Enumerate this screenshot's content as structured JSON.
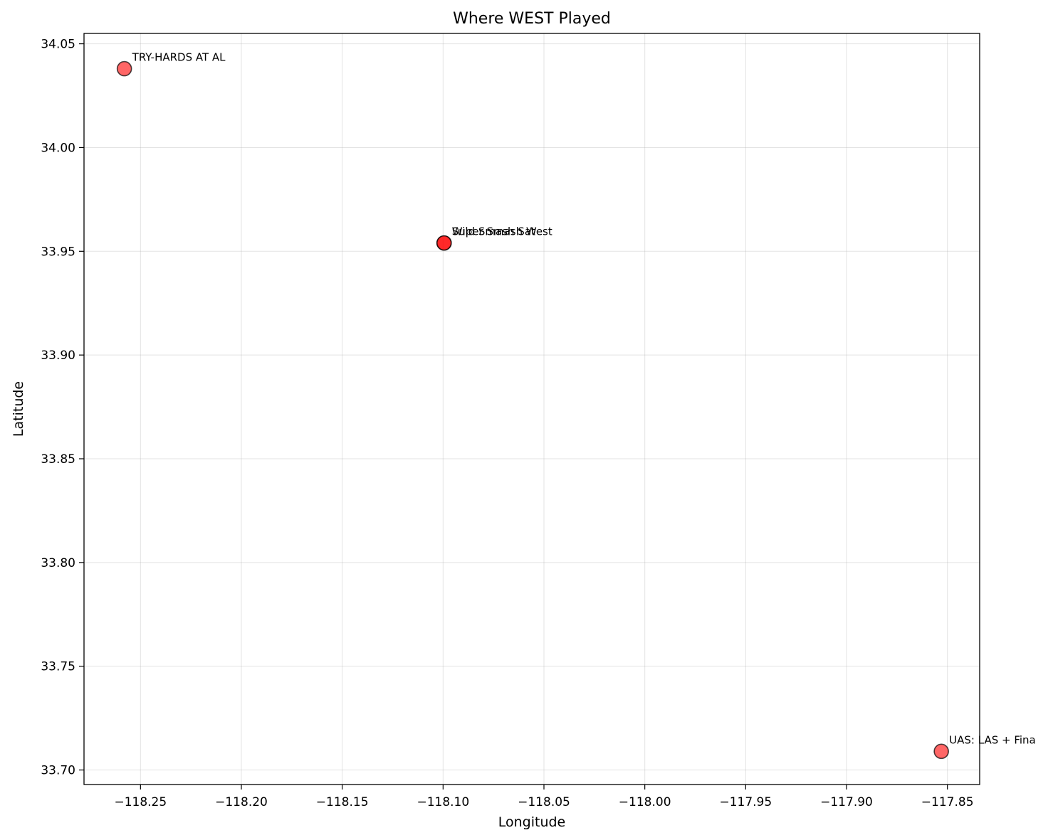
{
  "chart_data": {
    "type": "scatter",
    "title": "Where WEST Played",
    "xlabel": "Longitude",
    "ylabel": "Latitude",
    "xlim": [
      -118.278,
      -117.834
    ],
    "ylim": [
      33.693,
      34.055
    ],
    "grid": true,
    "xticks": [
      -118.25,
      -118.2,
      -118.15,
      -118.1,
      -118.05,
      -118.0,
      -117.95,
      -117.9,
      -117.85
    ],
    "xtick_labels": [
      "−118.25",
      "−118.20",
      "−118.15",
      "−118.10",
      "−118.05",
      "−118.00",
      "−117.95",
      "−117.90",
      "−117.85"
    ],
    "yticks": [
      33.7,
      33.75,
      33.8,
      33.85,
      33.9,
      33.95,
      34.0,
      34.05
    ],
    "ytick_labels": [
      "33.70",
      "33.75",
      "33.80",
      "33.85",
      "33.90",
      "33.95",
      "34.00",
      "34.05"
    ],
    "marker_color": "#ff0000",
    "marker_edge_color": "#000000",
    "points": [
      {
        "label": "TRY-HARDS AT AL",
        "x": -118.258,
        "y": 34.038
      },
      {
        "label": "Wild Smash Sat",
        "x": -118.0995,
        "y": 33.954
      },
      {
        "label": "Super Smash West",
        "x": -118.0995,
        "y": 33.954
      },
      {
        "label": "UAS: LAS + Fina",
        "x": -117.853,
        "y": 33.709
      }
    ]
  }
}
